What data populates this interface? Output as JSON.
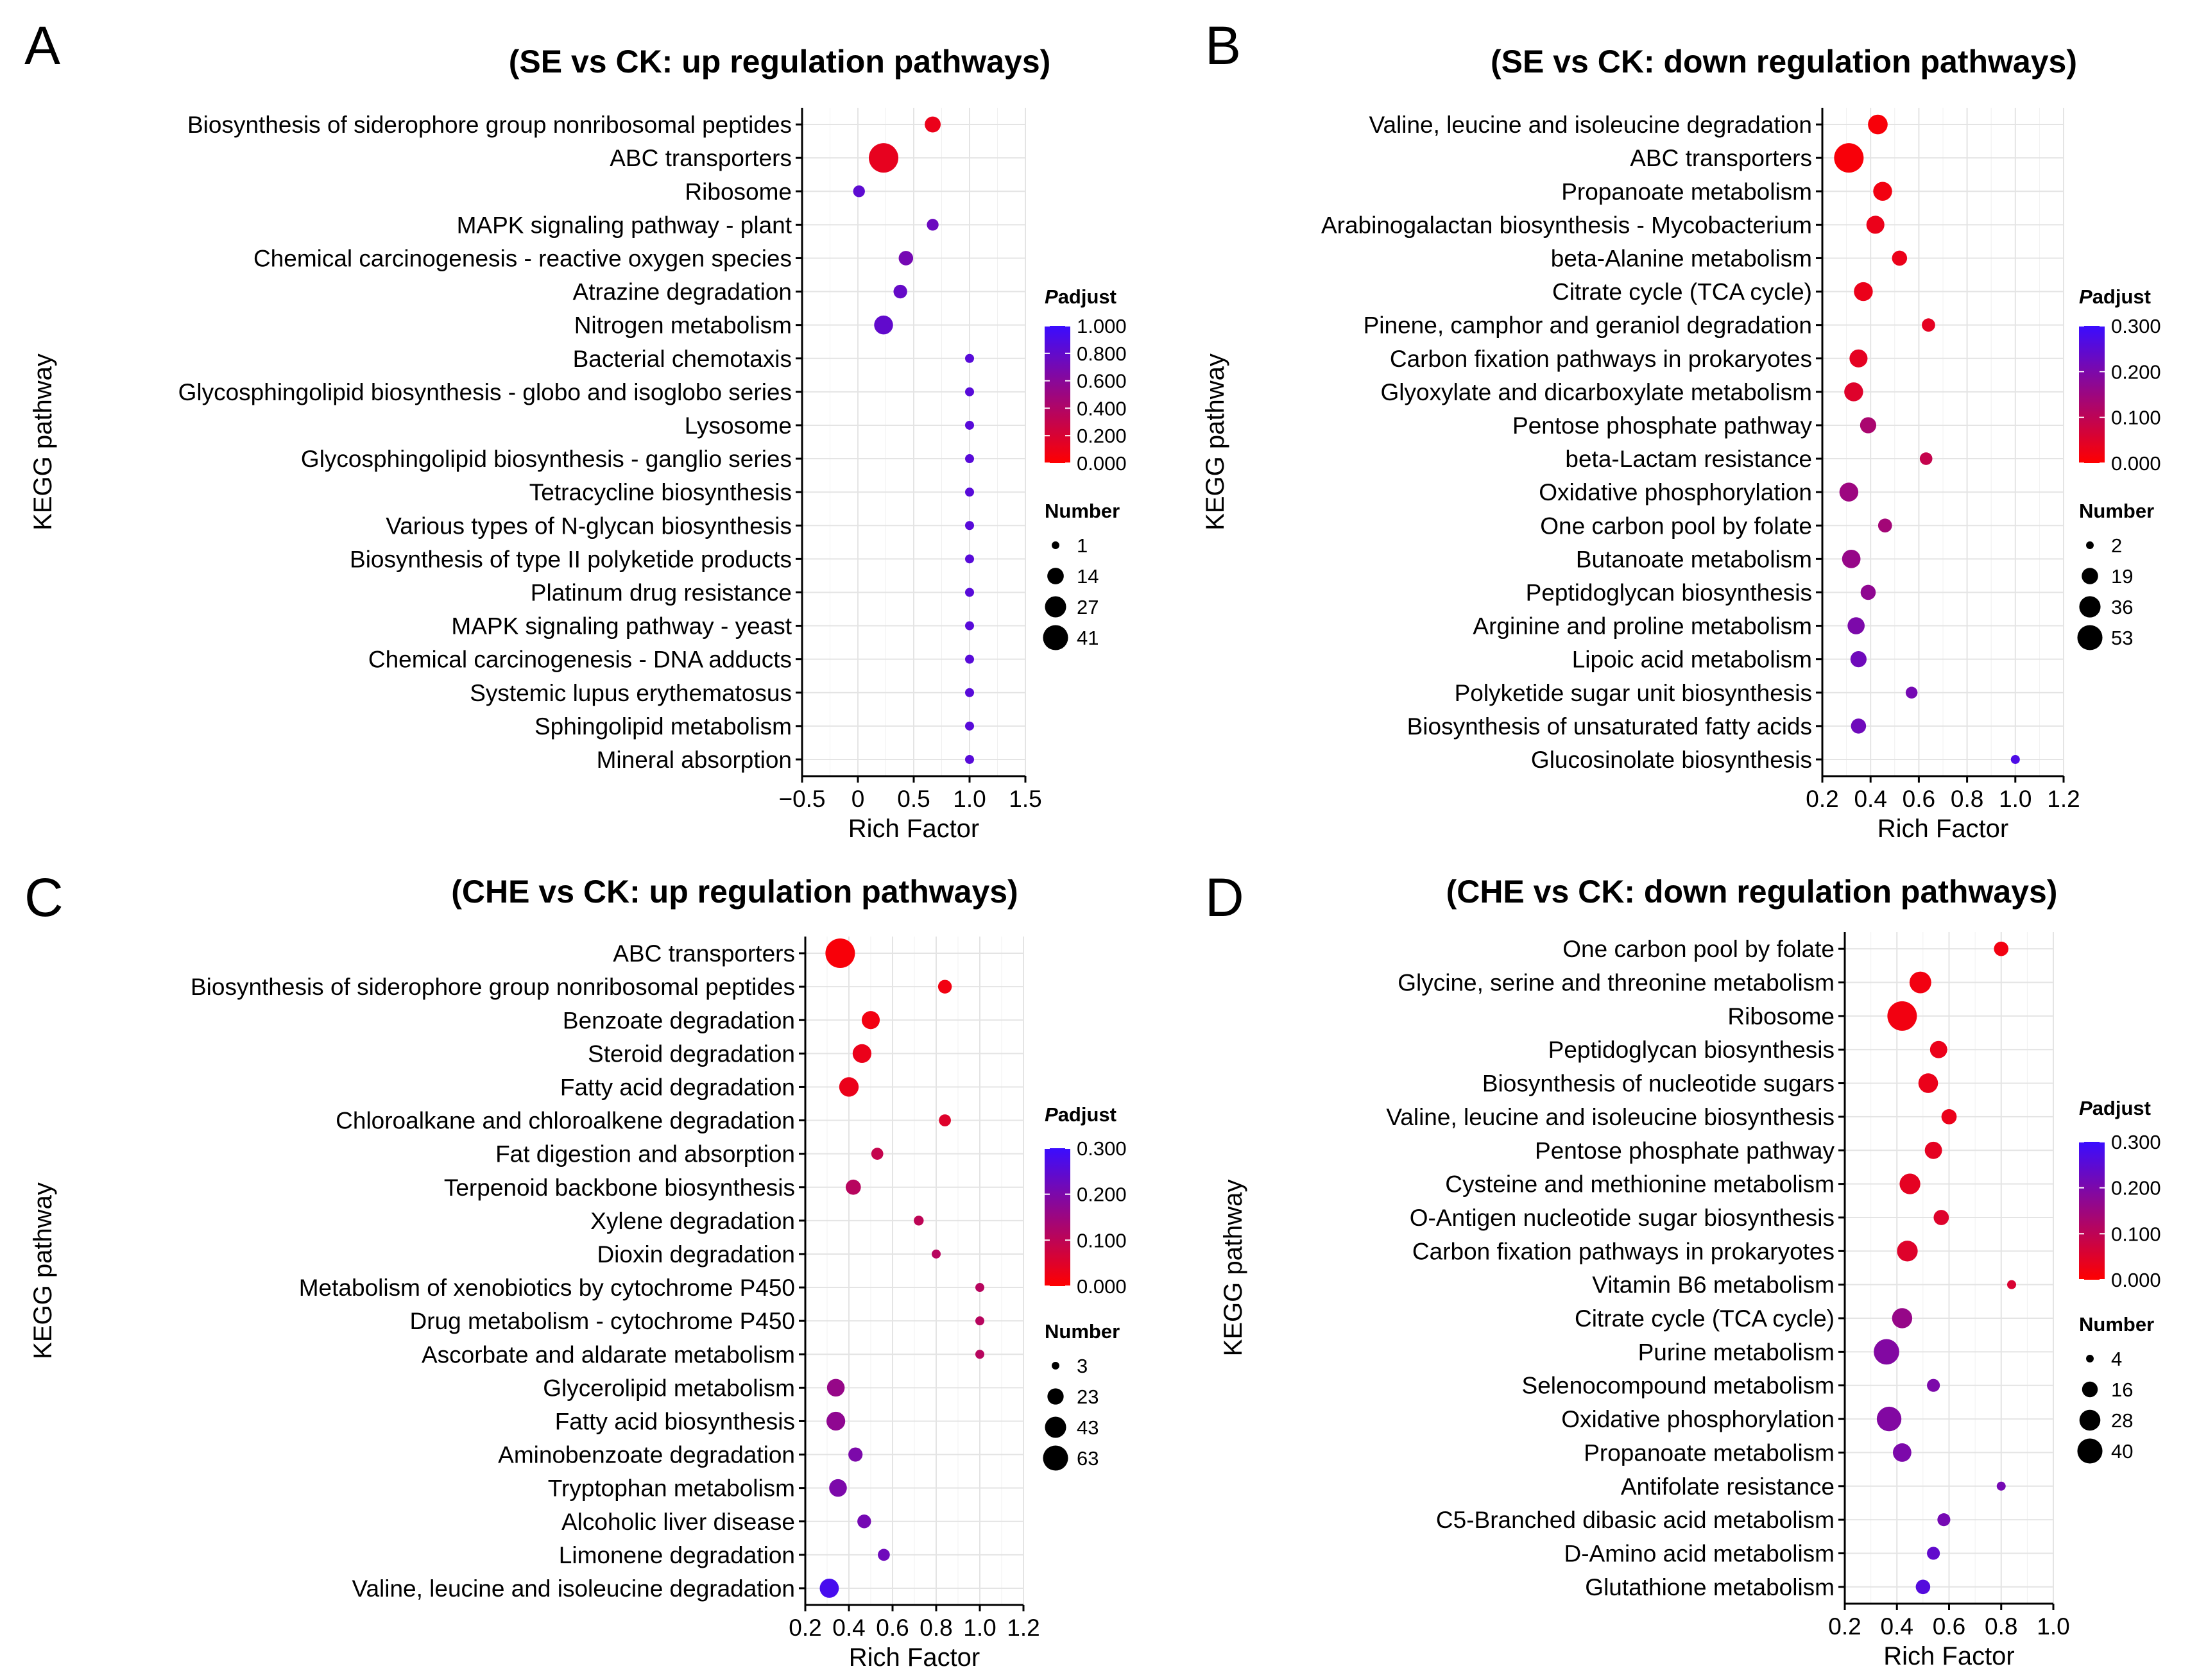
{
  "figure": {
    "colors": {
      "low": "#ff0000",
      "high": "#3a0dff",
      "grid": "#e4e4e4",
      "axis": "#000000"
    },
    "legend": {
      "color_title_italic": "P",
      "color_title_rest": "adjust",
      "size_title": "Number"
    }
  },
  "chart_data": [
    {
      "panel": "A",
      "type": "scatter",
      "title": "(SE vs CK: up regulation pathways)",
      "xlabel": "Rich Factor",
      "ylabel": "KEGG pathway",
      "xlim": [
        -0.5,
        1.5
      ],
      "xticks": [
        -0.5,
        0,
        0.5,
        1.0,
        1.5
      ],
      "xtick_labels": [
        "−0.5",
        "0",
        "0.5",
        "1.0",
        "1.5"
      ],
      "color_range": [
        0,
        1
      ],
      "color_ticks": [
        "1.000",
        "0.800",
        "0.600",
        "0.400",
        "0.200",
        "0.000"
      ],
      "size_range": [
        1,
        41
      ],
      "size_ticks": [
        1,
        14,
        27,
        41
      ],
      "categories": [
        "Biosynthesis of siderophore group nonribosomal peptides",
        "ABC transporters",
        "Ribosome",
        "MAPK signaling pathway - plant",
        "Chemical carcinogenesis - reactive oxygen species",
        "Atrazine degradation",
        "Nitrogen metabolism",
        "Bacterial chemotaxis",
        "Glycosphingolipid biosynthesis - globo and isoglobo series",
        "Lysosome",
        "Glycosphingolipid biosynthesis - ganglio series",
        "Tetracycline biosynthesis",
        "Various types of N-glycan biosynthesis",
        "Biosynthesis of type II polyketide products",
        "Platinum drug resistance",
        "MAPK signaling pathway - yeast",
        "Chemical carcinogenesis - DNA adducts",
        "Systemic lupus erythematosus",
        "Sphingolipid metabolism",
        "Mineral absorption"
      ],
      "rich_factor": [
        0.67,
        0.23,
        0.01,
        0.67,
        0.43,
        0.38,
        0.23,
        1.0,
        1.0,
        1.0,
        1.0,
        1.0,
        1.0,
        1.0,
        1.0,
        1.0,
        1.0,
        1.0,
        1.0,
        1.0
      ],
      "padjust": [
        0.1,
        0.12,
        0.82,
        0.75,
        0.7,
        0.78,
        0.8,
        0.85,
        0.85,
        0.85,
        0.85,
        0.85,
        0.85,
        0.85,
        0.85,
        0.85,
        0.85,
        0.85,
        0.85,
        0.85
      ],
      "number": [
        8,
        41,
        3,
        3,
        6,
        5,
        13,
        1,
        1,
        1,
        1,
        1,
        1,
        1,
        1,
        1,
        1,
        1,
        1,
        1
      ]
    },
    {
      "panel": "B",
      "type": "scatter",
      "title": "(SE vs CK: down regulation pathways)",
      "xlabel": "Rich Factor",
      "ylabel": "KEGG pathway",
      "xlim": [
        0.2,
        1.2
      ],
      "xticks": [
        0.2,
        0.4,
        0.6,
        0.8,
        1.0,
        1.2
      ],
      "xtick_labels": [
        "0.2",
        "0.4",
        "0.6",
        "0.8",
        "1.0",
        "1.2"
      ],
      "color_range": [
        0,
        0.3
      ],
      "color_ticks": [
        "0.300",
        "0.200",
        "0.100",
        "0.000"
      ],
      "size_range": [
        2,
        53
      ],
      "size_ticks": [
        2,
        19,
        36,
        53
      ],
      "categories": [
        "Valine, leucine and isoleucine degradation",
        "ABC transporters",
        "Propanoate metabolism",
        "Arabinogalactan biosynthesis - Mycobacterium",
        "beta-Alanine metabolism",
        "Citrate cycle (TCA cycle)",
        "Pinene, camphor and geraniol degradation",
        "Carbon fixation pathways in prokaryotes",
        "Glyoxylate and dicarboxylate metabolism",
        "Pentose phosphate pathway",
        "beta-Lactam resistance",
        "Oxidative phosphorylation",
        "One carbon pool by folate",
        "Butanoate metabolism",
        "Peptidoglycan biosynthesis",
        "Arginine and proline metabolism",
        "Lipoic acid metabolism",
        "Polyketide sugar unit biosynthesis",
        "Biosynthesis of unsaturated fatty acids",
        "Glucosinolate biosynthesis"
      ],
      "rich_factor": [
        0.43,
        0.31,
        0.45,
        0.42,
        0.52,
        0.37,
        0.64,
        0.35,
        0.33,
        0.39,
        0.63,
        0.31,
        0.46,
        0.32,
        0.39,
        0.34,
        0.35,
        0.57,
        0.35,
        1.0
      ],
      "padjust": [
        0.01,
        0.01,
        0.02,
        0.03,
        0.03,
        0.03,
        0.04,
        0.04,
        0.05,
        0.13,
        0.09,
        0.15,
        0.14,
        0.16,
        0.17,
        0.2,
        0.22,
        0.21,
        0.22,
        0.27
      ],
      "number": [
        20,
        53,
        18,
        16,
        10,
        18,
        7,
        16,
        18,
        12,
        6,
        18,
        8,
        17,
        10,
        14,
        12,
        5,
        10,
        2
      ]
    },
    {
      "panel": "C",
      "type": "scatter",
      "title": "(CHE vs CK: up regulation pathways)",
      "xlabel": "Rich Factor",
      "ylabel": "KEGG pathway",
      "xlim": [
        0.2,
        1.2
      ],
      "xticks": [
        0.2,
        0.4,
        0.6,
        0.8,
        1.0,
        1.2
      ],
      "xtick_labels": [
        "0.2",
        "0.4",
        "0.6",
        "0.8",
        "1.0",
        "1.2"
      ],
      "color_range": [
        0,
        0.3
      ],
      "color_ticks": [
        "0.300",
        "0.200",
        "0.100",
        "0.000"
      ],
      "size_range": [
        3,
        63
      ],
      "size_ticks": [
        3,
        23,
        43,
        63
      ],
      "categories": [
        "ABC transporters",
        "Biosynthesis of siderophore group nonribosomal peptides",
        "Benzoate degradation",
        "Steroid degradation",
        "Fatty acid degradation",
        "Chloroalkane and chloroalkene degradation",
        "Fat digestion and absorption",
        "Terpenoid backbone biosynthesis",
        "Xylene degradation",
        "Dioxin degradation",
        "Metabolism of xenobiotics by cytochrome P450",
        "Drug metabolism - cytochrome P450",
        "Ascorbate and aldarate metabolism",
        "Glycerolipid metabolism",
        "Fatty acid biosynthesis",
        "Aminobenzoate degradation",
        "Tryptophan metabolism",
        "Alcoholic liver disease",
        "Limonene degradation",
        "Valine, leucine and isoleucine degradation"
      ],
      "rich_factor": [
        0.36,
        0.84,
        0.5,
        0.46,
        0.4,
        0.84,
        0.53,
        0.42,
        0.72,
        0.8,
        1.0,
        1.0,
        1.0,
        0.34,
        0.34,
        0.43,
        0.35,
        0.47,
        0.56,
        0.31
      ],
      "padjust": [
        0.01,
        0.02,
        0.02,
        0.03,
        0.03,
        0.05,
        0.09,
        0.11,
        0.1,
        0.11,
        0.11,
        0.11,
        0.11,
        0.16,
        0.17,
        0.2,
        0.2,
        0.21,
        0.22,
        0.28
      ],
      "number": [
        63,
        10,
        20,
        22,
        24,
        7,
        7,
        13,
        4,
        3,
        3,
        3,
        3,
        19,
        22,
        11,
        19,
        10,
        7,
        23
      ]
    },
    {
      "panel": "D",
      "type": "scatter",
      "title": "(CHE vs CK: down regulation pathways)",
      "xlabel": "Rich Factor",
      "ylabel": "KEGG pathway",
      "xlim": [
        0.2,
        1.0
      ],
      "xticks": [
        0.2,
        0.4,
        0.6,
        0.8,
        1.0
      ],
      "xtick_labels": [
        "0.2",
        "0.4",
        "0.6",
        "0.8",
        "1.0"
      ],
      "color_range": [
        0,
        0.3
      ],
      "color_ticks": [
        "0.300",
        "0.200",
        "0.100",
        "0.000"
      ],
      "size_range": [
        4,
        40
      ],
      "size_ticks": [
        4,
        16,
        28,
        40
      ],
      "categories": [
        "One carbon pool by folate",
        "Glycine, serine and threonine metabolism",
        "Ribosome",
        "Peptidoglycan biosynthesis",
        "Biosynthesis of nucleotide sugars",
        "Valine, leucine and isoleucine biosynthesis",
        "Pentose phosphate pathway",
        "Cysteine and methionine metabolism",
        "O-Antigen nucleotide sugar biosynthesis",
        "Carbon fixation pathways in prokaryotes",
        "Vitamin B6 metabolism",
        "Citrate cycle (TCA cycle)",
        "Purine metabolism",
        "Selenocompound metabolism",
        "Oxidative phosphorylation",
        "Propanoate metabolism",
        "Antifolate resistance",
        "C5-Branched dibasic acid metabolism",
        "D-Amino acid metabolism",
        "Glutathione metabolism"
      ],
      "rich_factor": [
        0.8,
        0.49,
        0.42,
        0.56,
        0.52,
        0.6,
        0.54,
        0.45,
        0.57,
        0.44,
        0.84,
        0.42,
        0.36,
        0.54,
        0.37,
        0.42,
        0.8,
        0.58,
        0.54,
        0.5
      ],
      "padjust": [
        0.02,
        0.02,
        0.02,
        0.03,
        0.03,
        0.03,
        0.04,
        0.04,
        0.05,
        0.05,
        0.06,
        0.16,
        0.19,
        0.2,
        0.19,
        0.2,
        0.21,
        0.21,
        0.24,
        0.26
      ],
      "number": [
        10,
        22,
        40,
        14,
        18,
        11,
        14,
        20,
        11,
        20,
        4,
        19,
        30,
        8,
        28,
        16,
        4,
        8,
        8,
        10
      ]
    }
  ]
}
